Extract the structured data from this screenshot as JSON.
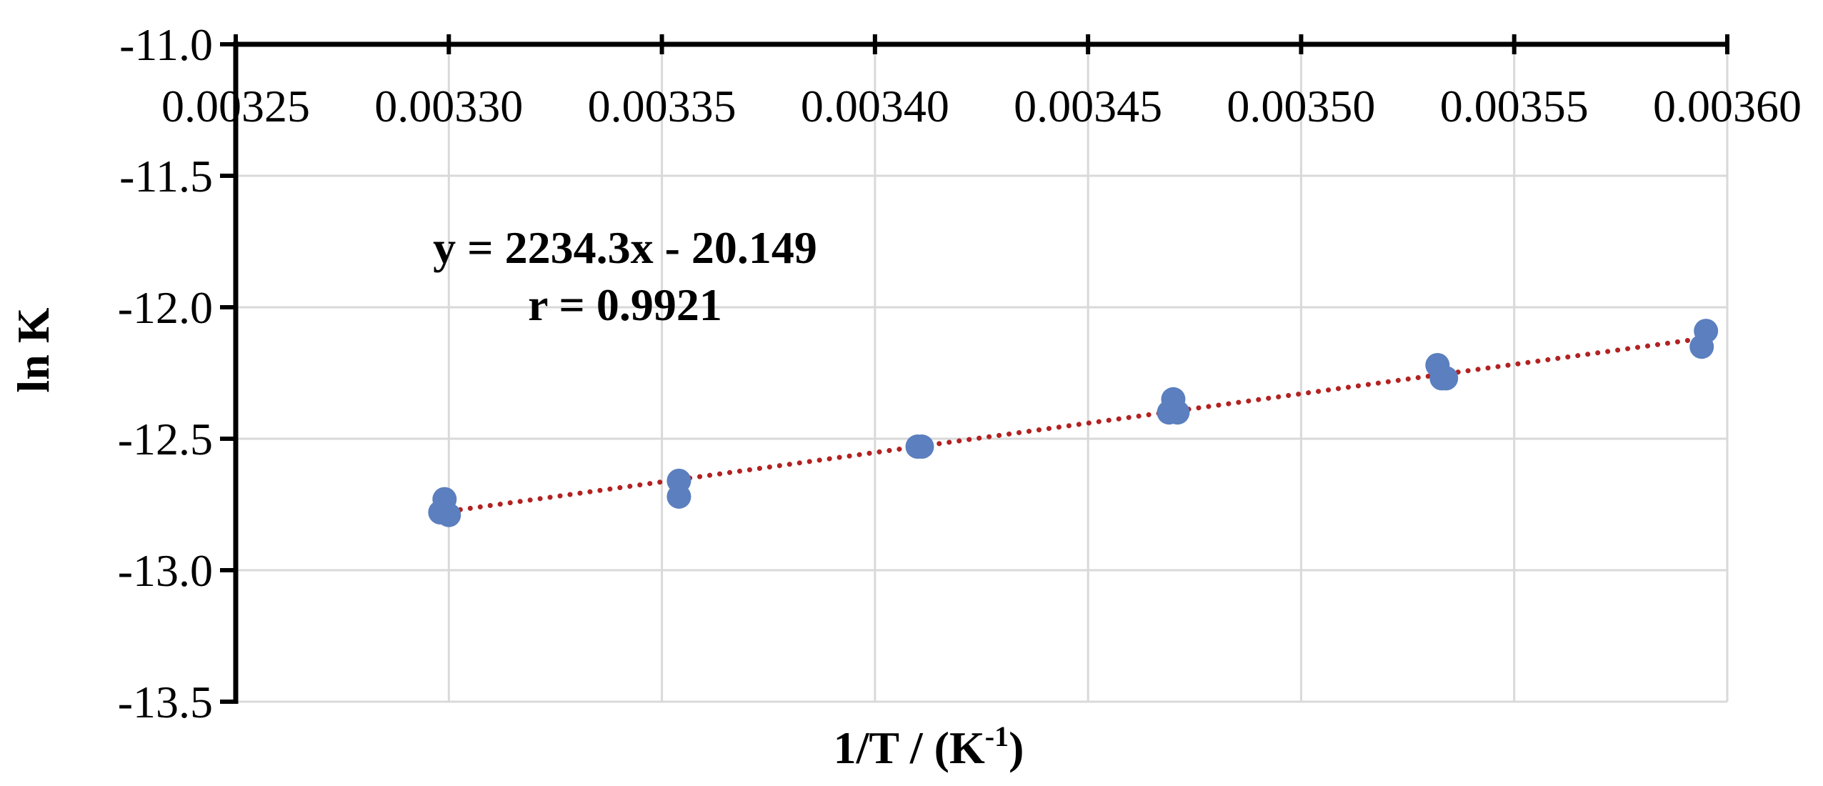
{
  "chart_data": {
    "type": "scatter",
    "title": "",
    "xlabel": "1/T / (K",
    "xlabel_sup": "-1",
    "xlabel_close": ")",
    "ylabel": "ln K",
    "xlim": [
      0.00325,
      0.0036
    ],
    "ylim": [
      -13.5,
      -11.0
    ],
    "x_ticks": [
      0.00325,
      0.0033,
      0.00335,
      0.0034,
      0.00345,
      0.0035,
      0.00355,
      0.0036
    ],
    "x_tick_labels": [
      "0.00325",
      "0.00330",
      "0.00335",
      "0.00340",
      "0.00345",
      "0.00350",
      "0.00355",
      "0.00360"
    ],
    "y_ticks": [
      -11.0,
      -11.5,
      -12.0,
      -12.5,
      -13.0,
      -13.5
    ],
    "y_tick_labels": [
      "-11.0",
      "-11.5",
      "-12.0",
      "-12.5",
      "-13.0",
      "-13.5"
    ],
    "grid": true,
    "x_axis_position": "top",
    "series": [
      {
        "marker_color": "#5b7fbf",
        "points": [
          {
            "x": 0.003299,
            "y": -12.73
          },
          {
            "x": 0.003298,
            "y": -12.78
          },
          {
            "x": 0.0033,
            "y": -12.79
          },
          {
            "x": 0.003354,
            "y": -12.66
          },
          {
            "x": 0.003354,
            "y": -12.72
          },
          {
            "x": 0.00341,
            "y": -12.53
          },
          {
            "x": 0.003411,
            "y": -12.53
          },
          {
            "x": 0.00347,
            "y": -12.35
          },
          {
            "x": 0.003469,
            "y": -12.4
          },
          {
            "x": 0.003471,
            "y": -12.4
          },
          {
            "x": 0.003532,
            "y": -12.22
          },
          {
            "x": 0.003533,
            "y": -12.27
          },
          {
            "x": 0.003534,
            "y": -12.27
          },
          {
            "x": 0.003595,
            "y": -12.09
          },
          {
            "x": 0.003594,
            "y": -12.15
          }
        ]
      }
    ],
    "trendline": {
      "type": "linear",
      "color": "#b22222",
      "style": "dotted",
      "slope": 2234.3,
      "intercept": -20.149,
      "x_start": 0.003298,
      "x_end": 0.003596
    },
    "annotations": {
      "equation": "y = 2234.3x - 20.149",
      "r_value": "r = 0.9921"
    }
  }
}
